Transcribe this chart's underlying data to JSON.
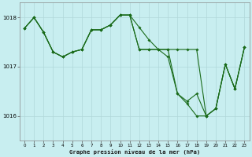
{
  "title": "Graphe pression niveau de la mer (hPa)",
  "background_color": "#c8eef0",
  "grid_color": "#b0d8da",
  "line_color": "#1a6b1a",
  "xlim": [
    -0.5,
    23.5
  ],
  "ylim": [
    1015.5,
    1018.3
  ],
  "yticks": [
    1016,
    1017,
    1018
  ],
  "xticks": [
    0,
    1,
    2,
    3,
    4,
    5,
    6,
    7,
    8,
    9,
    10,
    11,
    12,
    13,
    14,
    15,
    16,
    17,
    18,
    19,
    20,
    21,
    22,
    23
  ],
  "series1_x": [
    0,
    1,
    2,
    3,
    4,
    5,
    6,
    7,
    8,
    9,
    10,
    11,
    12,
    13,
    14,
    15,
    16,
    17,
    18,
    19,
    20,
    21,
    22,
    23
  ],
  "series1_y": [
    1017.78,
    1018.0,
    1017.7,
    1017.3,
    1017.2,
    1017.3,
    1017.35,
    1017.75,
    1017.75,
    1017.85,
    1018.05,
    1018.05,
    1017.8,
    1017.55,
    1017.35,
    1017.2,
    1016.45,
    1016.3,
    1016.45,
    1016.0,
    1016.15,
    1017.05,
    1016.55,
    1017.4
  ],
  "series2_x": [
    0,
    1,
    2,
    3,
    4,
    5,
    6,
    7,
    8,
    9,
    10,
    11,
    12,
    13,
    14,
    15,
    16,
    17,
    18,
    19,
    20,
    21,
    22,
    23
  ],
  "series2_y": [
    1017.78,
    1018.0,
    1017.7,
    1017.3,
    1017.2,
    1017.3,
    1017.35,
    1017.75,
    1017.75,
    1017.85,
    1018.05,
    1018.05,
    1017.35,
    1017.35,
    1017.35,
    1017.35,
    1017.35,
    1017.35,
    1017.35,
    1016.0,
    1016.15,
    1017.05,
    1016.55,
    1017.4
  ],
  "series3_x": [
    0,
    1,
    2,
    3,
    4,
    5,
    6,
    7,
    8,
    9,
    10,
    11,
    12,
    13,
    14,
    15,
    16,
    17,
    18,
    19,
    20,
    21,
    22,
    23
  ],
  "series3_y": [
    1017.78,
    1018.0,
    1017.7,
    1017.3,
    1017.2,
    1017.3,
    1017.35,
    1017.75,
    1017.75,
    1017.85,
    1018.05,
    1018.05,
    1017.35,
    1017.35,
    1017.35,
    1017.35,
    1016.45,
    1016.25,
    1016.0,
    1016.0,
    1016.15,
    1017.05,
    1016.55,
    1017.4
  ],
  "marker_size": 1.8,
  "line_width": 0.8
}
